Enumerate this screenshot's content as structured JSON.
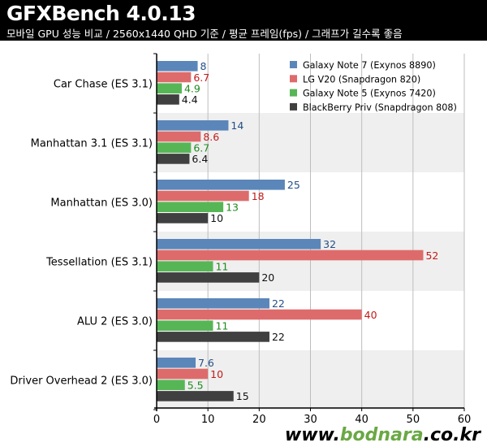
{
  "header": {
    "title": "GFXBench 4.0.13",
    "subtitle": "모바일 GPU 성능 비교 / 2560x1440 QHD 기준 / 평균 프레임(fps) / 그래프가 길수록 좋음"
  },
  "watermark": {
    "prefix": "www.",
    "middle": "bodnara",
    "suffix": ".co.kr"
  },
  "chart_data": {
    "type": "bar",
    "orientation": "horizontal",
    "categories": [
      "Car Chase (ES 3.1)",
      "Manhattan 3.1 (ES 3.1)",
      "Manhattan (ES 3.0)",
      "Tessellation (ES 3.1)",
      "ALU 2 (ES 3.0)",
      "Driver Overhead 2 (ES 3.0)"
    ],
    "series": [
      {
        "name": "Galaxy Note 7 (Exynos 8890)",
        "color": "#5b86b9",
        "label_color": "#244f86",
        "values": [
          8,
          14,
          25,
          32,
          22,
          7.6
        ]
      },
      {
        "name": "LG V20 (Snapdragon 820)",
        "color": "#de6b6b",
        "label_color": "#c41919",
        "values": [
          6.7,
          8.6,
          18,
          52,
          40,
          10
        ]
      },
      {
        "name": "Galaxy Note 5 (Exynos 7420)",
        "color": "#56b656",
        "label_color": "#1e8a1e",
        "values": [
          4.9,
          6.7,
          13,
          11,
          11,
          5.5
        ]
      },
      {
        "name": "BlackBerry Priv (Snapdragon 808)",
        "color": "#404040",
        "label_color": "#111111",
        "values": [
          4.4,
          6.4,
          10,
          20,
          22,
          15
        ]
      }
    ],
    "value_labels": [
      [
        "8",
        "14",
        "25",
        "32",
        "22",
        "7.6"
      ],
      [
        "6.7",
        "8.6",
        "18",
        "52",
        "40",
        "10"
      ],
      [
        "4.9",
        "6.7",
        "13",
        "11",
        "11",
        "5.5"
      ],
      [
        "4.4",
        "6.4",
        "10",
        "20",
        "22",
        "15"
      ]
    ],
    "xlim": [
      0,
      60
    ],
    "xticks": [
      "0",
      "10",
      "20",
      "30",
      "40",
      "50",
      "60"
    ],
    "grid": true,
    "legend_position": "top-right",
    "band_colors": [
      "#ffffff",
      "#efefef"
    ]
  }
}
